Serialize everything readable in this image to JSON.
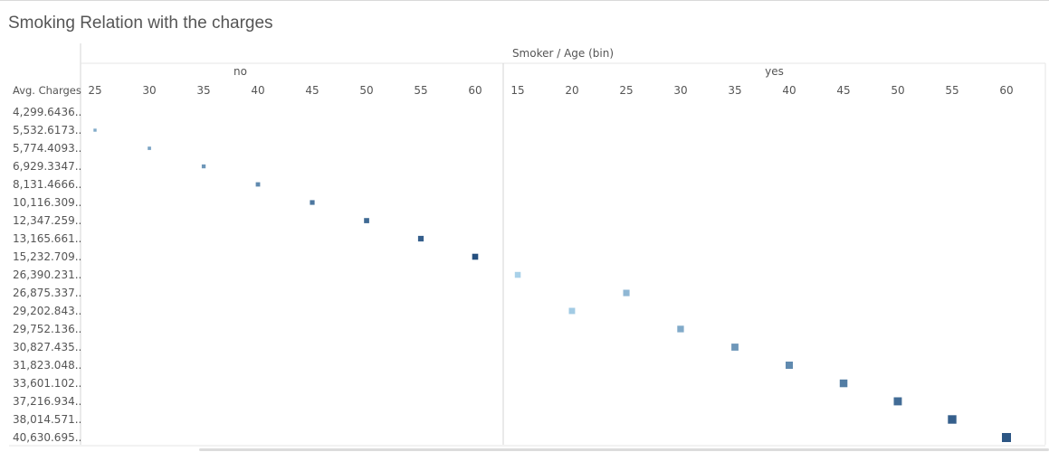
{
  "title": "Smoking Relation with the charges",
  "colors": {
    "gridline": "#d4d4d4",
    "low": "#a9d1e9",
    "high": "#25507f",
    "text": "#555555"
  },
  "chart_data": {
    "type": "scatter",
    "title": "Smoking Relation with the charges",
    "column_header": "Smoker / Age (bin)",
    "row_header": "Avg. Charges",
    "y_categories": [
      "4,299.6436..",
      "5,532.6173..",
      "5,774.4093..",
      "6,929.3347..",
      "8,131.4666..",
      "10,116.309..",
      "12,347.259..",
      "13,165.661..",
      "15,232.709..",
      "26,390.231..",
      "26,875.337..",
      "29,202.843..",
      "29,752.136..",
      "30,827.435..",
      "31,823.048..",
      "33,601.102..",
      "37,216.934..",
      "38,014.571..",
      "40,630.695.."
    ],
    "panels": [
      {
        "name": "no",
        "x_categories": [
          "25",
          "30",
          "35",
          "40",
          "45",
          "50",
          "55",
          "60"
        ],
        "points": [
          {
            "x": "25",
            "y": "5,532.6173..",
            "size": 0.05,
            "shade": 0.3
          },
          {
            "x": "30",
            "y": "5,774.4093..",
            "size": 0.1,
            "shade": 0.35
          },
          {
            "x": "35",
            "y": "6,929.3347..",
            "size": 0.18,
            "shade": 0.45
          },
          {
            "x": "40",
            "y": "8,131.4666..",
            "size": 0.25,
            "shade": 0.55
          },
          {
            "x": "45",
            "y": "10,116.309..",
            "size": 0.32,
            "shade": 0.7
          },
          {
            "x": "50",
            "y": "12,347.259..",
            "size": 0.38,
            "shade": 0.8
          },
          {
            "x": "55",
            "y": "13,165.661..",
            "size": 0.45,
            "shade": 0.88
          },
          {
            "x": "60",
            "y": "15,232.709..",
            "size": 0.52,
            "shade": 1.0
          }
        ]
      },
      {
        "name": "yes",
        "x_categories": [
          "15",
          "20",
          "25",
          "30",
          "35",
          "40",
          "45",
          "50",
          "55",
          "60"
        ],
        "points": [
          {
            "x": "15",
            "y": "26,390.231..",
            "size": 0.5,
            "shade": 0.0
          },
          {
            "x": "25",
            "y": "26,875.337..",
            "size": 0.58,
            "shade": 0.2
          },
          {
            "x": "20",
            "y": "29,202.843..",
            "size": 0.56,
            "shade": 0.05
          },
          {
            "x": "30",
            "y": "29,752.136..",
            "size": 0.62,
            "shade": 0.3
          },
          {
            "x": "35",
            "y": "30,827.435..",
            "size": 0.68,
            "shade": 0.45
          },
          {
            "x": "40",
            "y": "31,823.048..",
            "size": 0.72,
            "shade": 0.55
          },
          {
            "x": "45",
            "y": "33,601.102..",
            "size": 0.78,
            "shade": 0.65
          },
          {
            "x": "50",
            "y": "37,216.934..",
            "size": 0.85,
            "shade": 0.78
          },
          {
            "x": "55",
            "y": "38,014.571..",
            "size": 0.92,
            "shade": 0.88
          },
          {
            "x": "60",
            "y": "40,630.695..",
            "size": 1.0,
            "shade": 0.95
          }
        ]
      }
    ]
  }
}
